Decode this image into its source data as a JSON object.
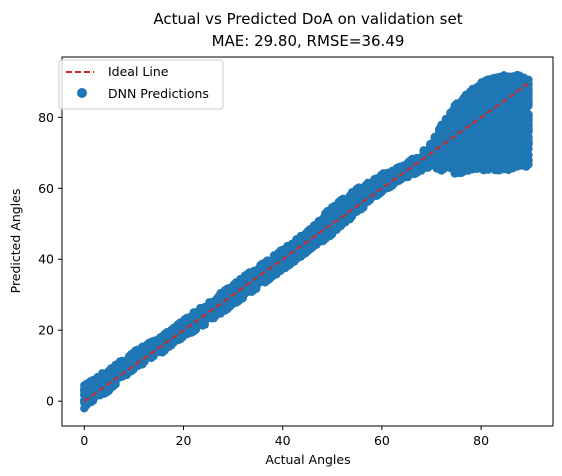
{
  "chart_data": {
    "type": "scatter",
    "title": "Actual vs Predicted DoA on validation set",
    "subtitle": "MAE: 29.80, RMSE=36.49",
    "xlabel": "Actual Angles",
    "ylabel": "Predicted Angles",
    "xlim": [
      -4.5,
      94.5
    ],
    "ylim": [
      -7,
      97
    ],
    "xticks": [
      0,
      20,
      40,
      60,
      80
    ],
    "yticks": [
      0,
      20,
      40,
      60,
      80
    ],
    "grid": false,
    "legend": {
      "position": "top-left",
      "entries": [
        {
          "label": "Ideal Line",
          "style": "dashed-line",
          "color": "#d62728"
        },
        {
          "label": "DNN Predictions",
          "style": "marker",
          "color": "#1f77b4"
        }
      ]
    },
    "series": [
      {
        "name": "Ideal Line",
        "kind": "line",
        "color": "#d62728",
        "x": [
          0,
          90
        ],
        "y": [
          0,
          90
        ]
      },
      {
        "name": "DNN Predictions",
        "kind": "scatter",
        "color": "#1f77b4",
        "center": {
          "x": [
            0,
            5,
            10,
            15,
            20,
            25,
            30,
            35,
            40,
            45,
            50,
            55,
            60,
            63,
            65,
            68,
            70,
            72,
            75,
            78,
            80,
            82,
            85,
            88,
            90
          ],
          "y": [
            2,
            7,
            12,
            16,
            20.5,
            25,
            30,
            35,
            40,
            45,
            51,
            56.5,
            62,
            64.5,
            65.5,
            67.5,
            69,
            71,
            73,
            77,
            80,
            82,
            84,
            86,
            87
          ]
        },
        "spread": [
          [
            0,
            -2,
            5
          ],
          [
            5,
            3,
            9
          ],
          [
            10,
            9,
            14
          ],
          [
            15,
            13,
            18
          ],
          [
            20,
            18,
            23
          ],
          [
            25,
            22,
            28
          ],
          [
            30,
            27,
            33
          ],
          [
            35,
            32,
            38
          ],
          [
            40,
            37,
            43
          ],
          [
            45,
            42,
            48
          ],
          [
            50,
            47,
            55
          ],
          [
            55,
            53,
            60
          ],
          [
            60,
            59,
            64
          ],
          [
            65,
            63,
            67
          ],
          [
            70,
            66,
            73
          ],
          [
            72,
            65,
            78
          ],
          [
            75,
            64,
            84
          ],
          [
            78,
            65,
            88
          ],
          [
            80,
            65,
            90
          ],
          [
            82,
            65,
            91
          ],
          [
            85,
            65,
            92
          ],
          [
            88,
            66,
            92
          ],
          [
            90,
            66,
            91
          ]
        ]
      }
    ]
  }
}
